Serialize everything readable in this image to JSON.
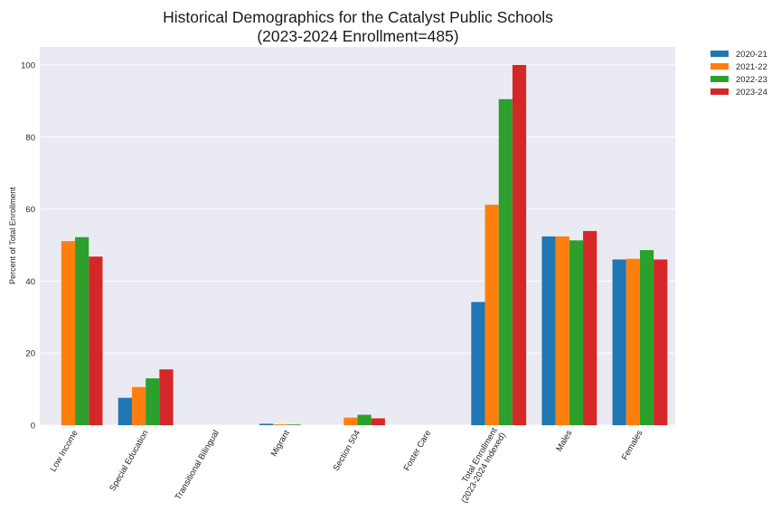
{
  "chart_data": {
    "type": "bar",
    "title": "Historical Demographics for the Catalyst Public Schools",
    "subtitle": "(2023-2024 Enrollment=485)",
    "ylabel": "Percent of Total Enrollment",
    "xlabel": "",
    "ylim": [
      0,
      105
    ],
    "yticks": [
      0,
      20,
      40,
      60,
      80,
      100
    ],
    "grid": true,
    "legend_position": "outside-top-right",
    "categories": [
      [
        "Low Income"
      ],
      [
        "Special Education"
      ],
      [
        "Transitional Bilingual"
      ],
      [
        "Migrant"
      ],
      [
        "Section 504"
      ],
      [
        "Foster Care"
      ],
      [
        "Total Enrollment",
        "(2023-2024 Indexed)"
      ],
      [
        "Males"
      ],
      [
        "Females"
      ]
    ],
    "series": [
      {
        "name": "2020-21",
        "color": "#1f77b4",
        "values": [
          0,
          7.6,
          0,
          0.4,
          0,
          0,
          34.2,
          52.4,
          46.0
        ]
      },
      {
        "name": "2021-22",
        "color": "#ff7f0e",
        "values": [
          51.1,
          10.6,
          0,
          0.2,
          2.1,
          0,
          61.2,
          52.4,
          46.2
        ]
      },
      {
        "name": "2022-23",
        "color": "#2ca02c",
        "values": [
          52.2,
          13.0,
          0,
          0.2,
          2.9,
          0,
          90.5,
          51.3,
          48.6
        ]
      },
      {
        "name": "2023-24",
        "color": "#d62728",
        "values": [
          46.8,
          15.5,
          0,
          0,
          1.9,
          0,
          100.0,
          53.9,
          46.0
        ]
      }
    ]
  }
}
